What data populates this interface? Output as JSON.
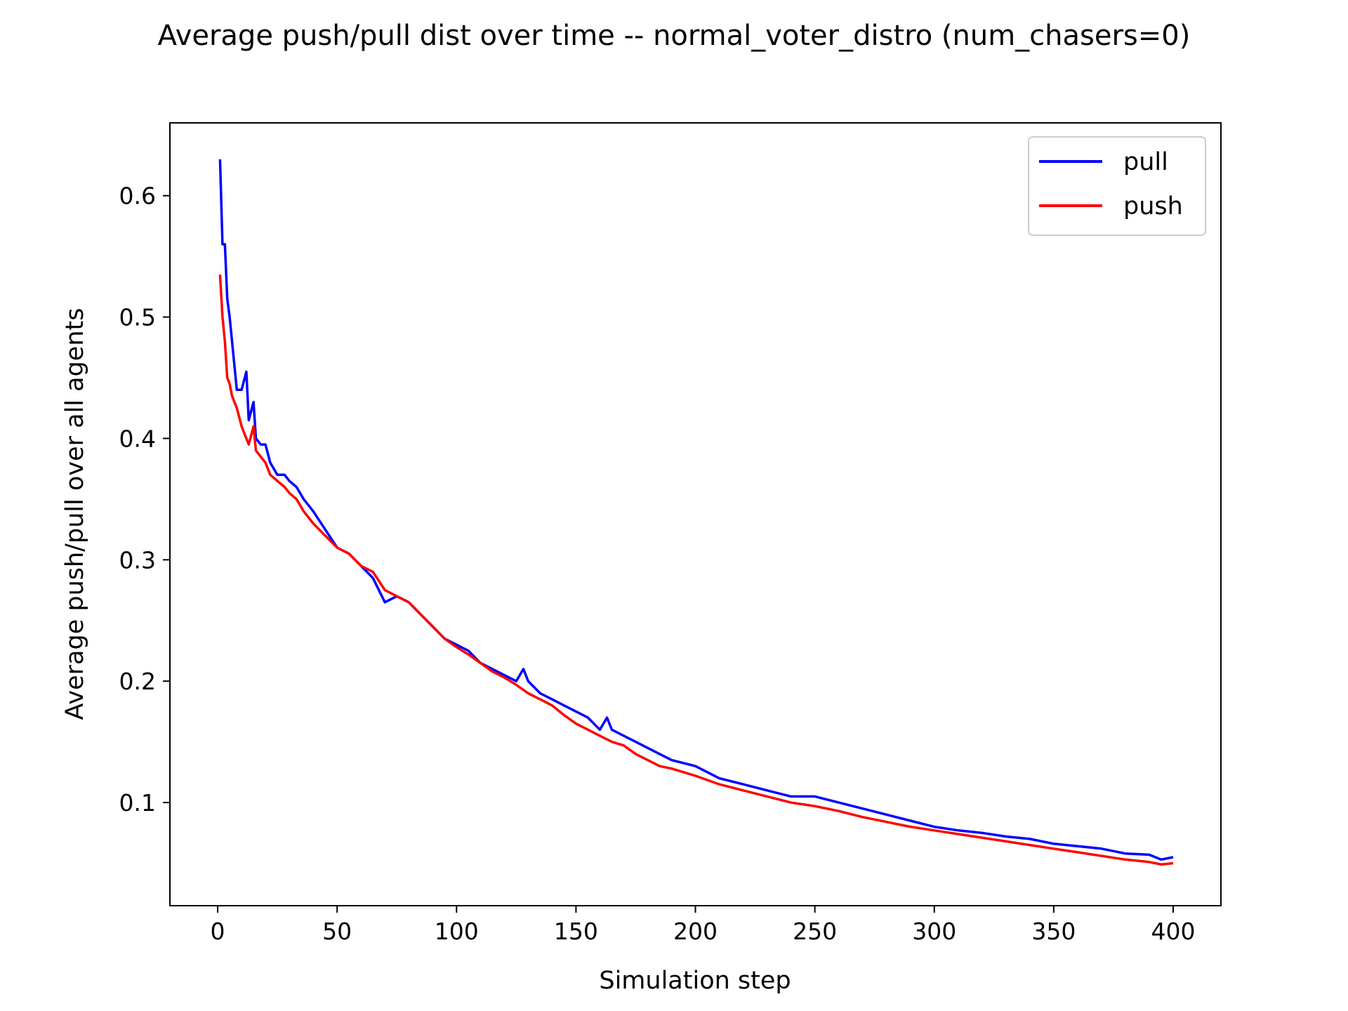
{
  "chart_data": {
    "type": "line",
    "title": "Average push/pull dist over time -- normal_voter_distro (num_chasers=0)",
    "xlabel": "Simulation step",
    "ylabel": "Average push/pull over all agents",
    "xlim": [
      -20,
      420
    ],
    "ylim": [
      0.015,
      0.66
    ],
    "x_ticks": [
      0,
      50,
      100,
      150,
      200,
      250,
      300,
      350,
      400
    ],
    "x_tick_labels": [
      "0",
      "50",
      "100",
      "150",
      "200",
      "250",
      "300",
      "350",
      "400"
    ],
    "y_ticks": [
      0.1,
      0.2,
      0.3,
      0.4,
      0.5,
      0.6
    ],
    "y_tick_labels": [
      "0.1",
      "0.2",
      "0.3",
      "0.4",
      "0.5",
      "0.6"
    ],
    "grid": false,
    "legend_position": "top-right",
    "series": [
      {
        "name": "pull",
        "color": "#0000ff",
        "x": [
          1,
          2,
          3,
          4,
          5,
          6,
          7,
          8,
          10,
          12,
          13,
          15,
          16,
          18,
          20,
          22,
          25,
          28,
          30,
          33,
          36,
          40,
          45,
          50,
          55,
          60,
          65,
          70,
          75,
          80,
          85,
          90,
          95,
          100,
          105,
          110,
          115,
          120,
          125,
          128,
          130,
          135,
          140,
          145,
          150,
          155,
          160,
          163,
          165,
          170,
          175,
          180,
          185,
          190,
          200,
          210,
          220,
          230,
          240,
          250,
          260,
          270,
          280,
          290,
          300,
          310,
          320,
          330,
          340,
          350,
          360,
          370,
          380,
          390,
          395,
          400
        ],
        "y": [
          0.63,
          0.56,
          0.56,
          0.515,
          0.5,
          0.48,
          0.46,
          0.44,
          0.44,
          0.455,
          0.415,
          0.43,
          0.4,
          0.395,
          0.395,
          0.38,
          0.37,
          0.37,
          0.365,
          0.36,
          0.35,
          0.34,
          0.325,
          0.31,
          0.305,
          0.295,
          0.285,
          0.265,
          0.27,
          0.265,
          0.255,
          0.245,
          0.235,
          0.23,
          0.225,
          0.215,
          0.21,
          0.205,
          0.2,
          0.21,
          0.2,
          0.19,
          0.185,
          0.18,
          0.175,
          0.17,
          0.16,
          0.17,
          0.16,
          0.155,
          0.15,
          0.145,
          0.14,
          0.135,
          0.13,
          0.12,
          0.115,
          0.11,
          0.105,
          0.105,
          0.1,
          0.095,
          0.09,
          0.085,
          0.08,
          0.077,
          0.075,
          0.072,
          0.07,
          0.066,
          0.064,
          0.062,
          0.058,
          0.057,
          0.053,
          0.055
        ]
      },
      {
        "name": "push",
        "color": "#ff0000",
        "x": [
          1,
          2,
          3,
          4,
          5,
          6,
          7,
          8,
          10,
          12,
          13,
          15,
          16,
          18,
          20,
          22,
          25,
          28,
          30,
          33,
          36,
          40,
          45,
          50,
          55,
          60,
          65,
          70,
          75,
          80,
          85,
          90,
          95,
          100,
          105,
          110,
          115,
          120,
          125,
          130,
          135,
          140,
          145,
          150,
          155,
          160,
          165,
          170,
          175,
          180,
          185,
          190,
          200,
          210,
          220,
          230,
          240,
          250,
          260,
          270,
          280,
          290,
          300,
          310,
          320,
          330,
          340,
          350,
          360,
          370,
          380,
          390,
          395,
          400
        ],
        "y": [
          0.535,
          0.5,
          0.48,
          0.45,
          0.445,
          0.435,
          0.43,
          0.425,
          0.41,
          0.4,
          0.395,
          0.41,
          0.39,
          0.385,
          0.38,
          0.37,
          0.365,
          0.36,
          0.355,
          0.35,
          0.34,
          0.33,
          0.32,
          0.31,
          0.305,
          0.295,
          0.29,
          0.275,
          0.27,
          0.265,
          0.255,
          0.245,
          0.235,
          0.228,
          0.222,
          0.215,
          0.208,
          0.203,
          0.197,
          0.19,
          0.185,
          0.18,
          0.172,
          0.165,
          0.16,
          0.155,
          0.15,
          0.147,
          0.14,
          0.135,
          0.13,
          0.128,
          0.122,
          0.115,
          0.11,
          0.105,
          0.1,
          0.097,
          0.093,
          0.088,
          0.084,
          0.08,
          0.077,
          0.074,
          0.071,
          0.068,
          0.065,
          0.062,
          0.059,
          0.056,
          0.053,
          0.051,
          0.049,
          0.05
        ]
      }
    ]
  }
}
